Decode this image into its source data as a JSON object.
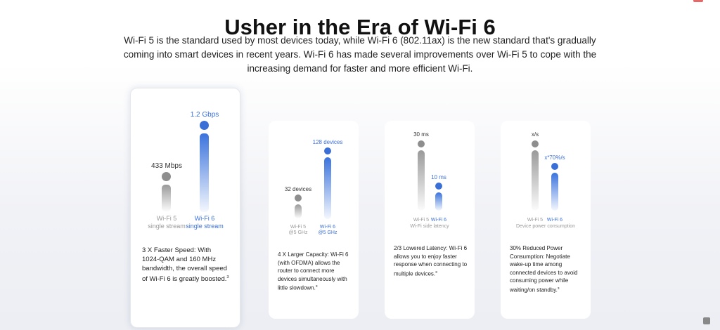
{
  "page": {
    "title": "Usher in the Era of Wi-Fi 6",
    "intro": "Wi-Fi 5 is the standard used by most devices today, while Wi-Fi 6 (802.11ax) is the new standard that's gradually coming into smart devices in recent years. Wi-Fi 6 has made several improvements over Wi-Fi 5 to cope with the increasing demand for faster and more efficient Wi-Fi."
  },
  "colors": {
    "wifi5": "#8e8e8e",
    "wifi6": "#3b6fd8"
  },
  "cards": [
    {
      "wifi5_value": "433 Mbps",
      "wifi6_value": "1.2 Gbps",
      "wifi5_label": [
        "Wi-Fi 5",
        "single stream"
      ],
      "wifi6_label": [
        "Wi-Fi 6",
        "single stream"
      ],
      "caption": "",
      "desc": "3 X Faster Speed: With 1024-QAM and 160 MHz bandwidth, the overall speed of Wi-Fi 6 is greatly boosted.",
      "note": "3"
    },
    {
      "wifi5_value": "32 devices",
      "wifi6_value": "128 devices",
      "wifi5_label": [
        "Wi-Fi 5",
        "@5 GHz"
      ],
      "wifi6_label": [
        "Wi-Fi 6",
        "@5 GHz"
      ],
      "caption": "",
      "desc": "4 X Larger Capacity: Wi-Fi 6 (with OFDMA) allows the router to connect more devices simultaneously with little slowdown.",
      "note": "3"
    },
    {
      "wifi5_value": "30 ms",
      "wifi6_value": "10 ms",
      "wifi5_label": [
        "Wi-Fi 5"
      ],
      "wifi6_label": [
        "Wi-Fi 6"
      ],
      "caption": "Wi-Fi side latency",
      "desc": "2/3 Lowered Latency: Wi-Fi 6 allows you to enjoy faster response when connecting to multiple devices.",
      "note": "3"
    },
    {
      "wifi5_value": "x/s",
      "wifi6_value": "x*70%/s",
      "wifi5_label": [
        "Wi-Fi 5"
      ],
      "wifi6_label": [
        "Wi-Fi 6"
      ],
      "caption": "Device power consumption",
      "desc": "30% Reduced Power Consumption: Negotiate wake-up time among connected devices to avoid consuming power while waiting/on standby.",
      "note": "3"
    }
  ]
}
